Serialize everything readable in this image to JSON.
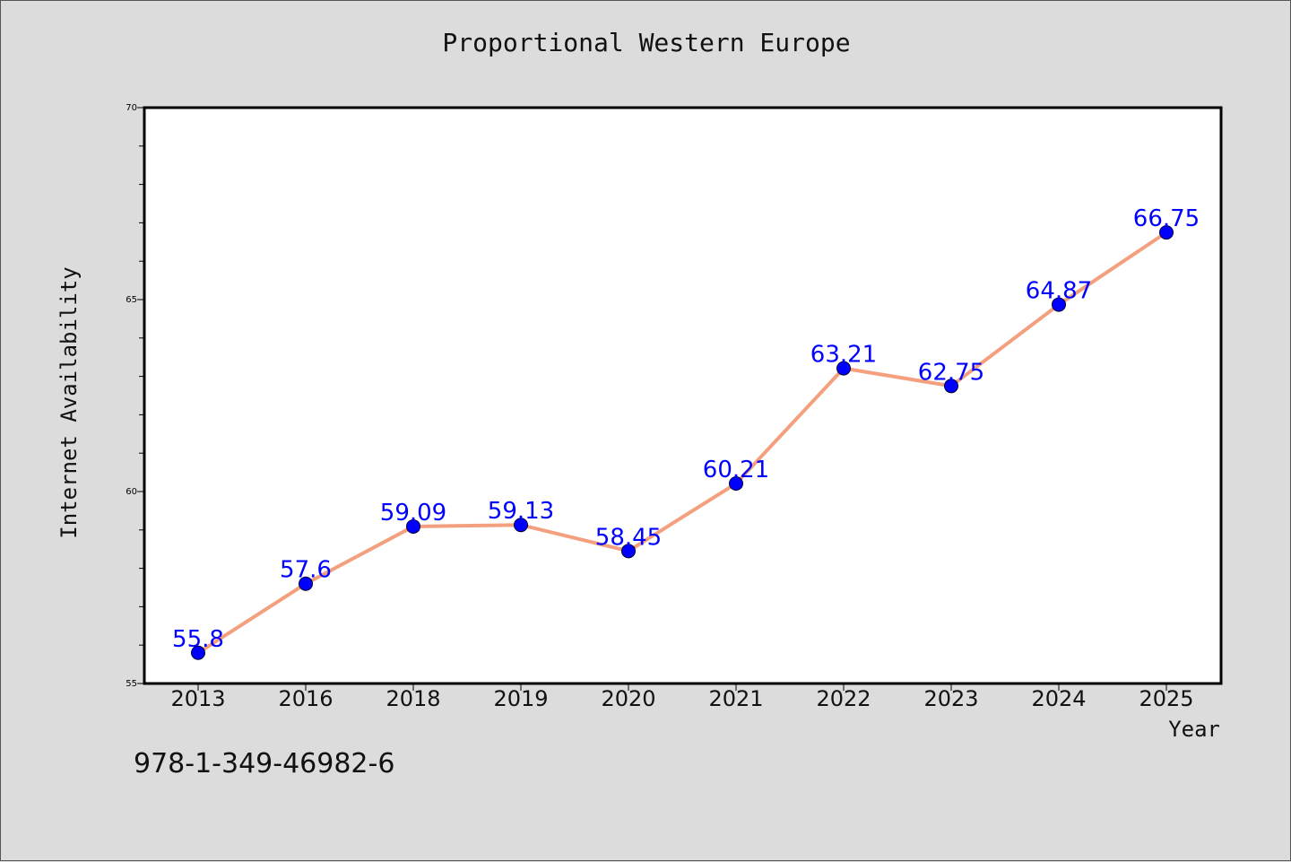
{
  "chart_data": {
    "type": "line",
    "title": "Proportional Western Europe",
    "xlabel": "Year",
    "ylabel": "Internet Availability",
    "categories": [
      "2013",
      "2016",
      "2018",
      "2019",
      "2020",
      "2021",
      "2022",
      "2023",
      "2024",
      "2025"
    ],
    "series": [
      {
        "values": [
          55.8,
          57.6,
          59.09,
          59.13,
          58.45,
          60.21,
          63.21,
          62.75,
          64.87,
          66.75
        ],
        "data_labels": [
          "55.8",
          "57.6",
          "59.09",
          "59.13",
          "58.45",
          "60.21",
          "63.21",
          "62.75",
          "64.87",
          "66.75"
        ],
        "line_color": "#f4a07e",
        "marker_color": "#0000ff",
        "label_color": "#0000ff"
      }
    ],
    "ylim": [
      55,
      70
    ],
    "yticks": [
      "55",
      "60",
      "65",
      "70"
    ],
    "grid": false,
    "legend": "none",
    "plot_background": "#ffffff",
    "figure_background": "#dcdcdc"
  },
  "annotation": "978-1-349-46982-6"
}
